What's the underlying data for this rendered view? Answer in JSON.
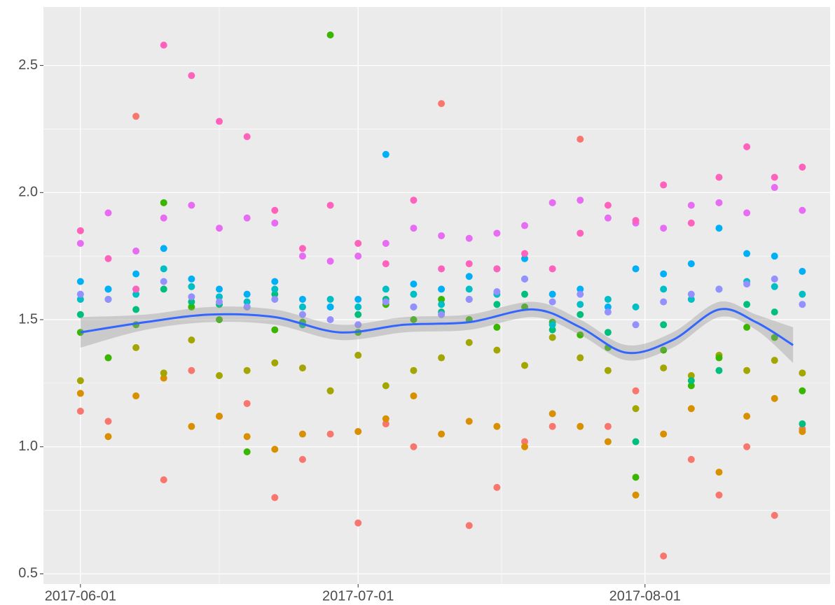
{
  "chart_data": {
    "type": "scatter",
    "x": [
      "2017-06-01",
      "2017-06-04",
      "2017-06-07",
      "2017-06-10",
      "2017-06-13",
      "2017-06-16",
      "2017-06-19",
      "2017-06-22",
      "2017-06-25",
      "2017-06-28",
      "2017-07-01",
      "2017-07-04",
      "2017-07-07",
      "2017-07-10",
      "2017-07-13",
      "2017-07-16",
      "2017-07-19",
      "2017-07-22",
      "2017-07-25",
      "2017-07-28",
      "2017-07-31",
      "2017-08-03",
      "2017-08-06",
      "2017-08-09",
      "2017-08-12",
      "2017-08-15",
      "2017-08-18"
    ],
    "series": [
      {
        "color": "#F8766D",
        "values": [
          1.14,
          1.1,
          2.3,
          0.87,
          1.3,
          1.12,
          1.17,
          0.8,
          0.95,
          1.05,
          0.7,
          1.09,
          1.0,
          2.35,
          0.69,
          0.84,
          1.02,
          1.08,
          2.21,
          1.08,
          1.22,
          0.57,
          0.95,
          0.81,
          1.0,
          0.73,
          1.07
        ]
      },
      {
        "color": "#D89000",
        "values": [
          1.21,
          1.04,
          1.2,
          1.27,
          1.08,
          1.12,
          1.04,
          0.99,
          1.05,
          1.22,
          1.06,
          1.11,
          1.2,
          1.05,
          1.1,
          1.08,
          1.0,
          1.13,
          1.08,
          1.02,
          0.81,
          1.05,
          1.15,
          0.9,
          1.12,
          1.19,
          1.06
        ]
      },
      {
        "color": "#A3A500",
        "values": [
          1.26,
          1.35,
          1.39,
          1.29,
          1.42,
          1.28,
          1.3,
          1.33,
          1.31,
          1.22,
          1.36,
          1.24,
          1.3,
          1.35,
          1.41,
          1.38,
          1.32,
          1.43,
          1.35,
          1.3,
          1.15,
          1.31,
          1.28,
          1.36,
          1.3,
          1.34,
          1.29
        ]
      },
      {
        "color": "#39B600",
        "values": [
          1.45,
          1.35,
          1.48,
          1.96,
          1.55,
          1.5,
          0.98,
          1.46,
          1.49,
          2.62,
          1.45,
          1.56,
          1.5,
          1.58,
          1.5,
          1.47,
          1.55,
          1.49,
          1.44,
          1.39,
          0.88,
          1.38,
          1.24,
          1.35,
          1.47,
          1.43,
          1.22
        ]
      },
      {
        "color": "#00BF7D",
        "values": [
          1.52,
          1.58,
          1.54,
          1.62,
          1.57,
          1.56,
          1.55,
          1.6,
          1.48,
          1.55,
          1.52,
          1.58,
          1.55,
          1.53,
          1.58,
          1.56,
          1.6,
          1.46,
          1.52,
          1.45,
          1.02,
          1.48,
          1.26,
          1.3,
          1.56,
          1.53,
          1.09
        ]
      },
      {
        "color": "#00BFC4",
        "values": [
          1.58,
          1.62,
          1.6,
          1.7,
          1.63,
          1.59,
          1.57,
          1.62,
          1.55,
          1.58,
          1.55,
          1.62,
          1.6,
          1.56,
          1.62,
          1.6,
          1.66,
          1.48,
          1.56,
          1.58,
          1.55,
          1.62,
          1.58,
          1.62,
          1.65,
          1.63,
          1.6
        ]
      },
      {
        "color": "#00B0F6",
        "values": [
          1.65,
          1.62,
          1.68,
          1.78,
          1.66,
          1.62,
          1.6,
          1.65,
          1.58,
          1.55,
          1.58,
          2.15,
          1.64,
          1.62,
          1.67,
          1.7,
          1.74,
          1.6,
          1.62,
          1.55,
          1.7,
          1.68,
          1.72,
          1.86,
          1.76,
          1.75,
          1.69
        ]
      },
      {
        "color": "#9590FF",
        "values": [
          1.6,
          1.58,
          1.62,
          1.65,
          1.59,
          1.57,
          1.55,
          1.58,
          1.52,
          1.5,
          1.48,
          1.57,
          1.55,
          1.52,
          1.58,
          1.61,
          1.66,
          1.57,
          1.6,
          1.53,
          1.48,
          1.57,
          1.6,
          1.62,
          1.64,
          1.66,
          1.56
        ]
      },
      {
        "color": "#E76BF3",
        "values": [
          1.8,
          1.92,
          1.77,
          1.9,
          1.95,
          1.86,
          1.9,
          1.88,
          1.75,
          1.73,
          1.75,
          1.8,
          1.86,
          1.83,
          1.82,
          1.84,
          1.87,
          1.96,
          1.97,
          1.9,
          1.88,
          1.86,
          1.95,
          1.96,
          1.92,
          2.02,
          1.93
        ]
      },
      {
        "color": "#FF62BC",
        "values": [
          1.85,
          1.74,
          1.62,
          2.58,
          2.46,
          2.28,
          2.22,
          1.93,
          1.78,
          1.95,
          1.8,
          1.72,
          1.97,
          1.7,
          1.72,
          1.7,
          1.76,
          1.7,
          1.84,
          1.95,
          1.89,
          2.03,
          1.88,
          2.06,
          2.18,
          2.06,
          2.1
        ]
      }
    ],
    "smooth": {
      "color": "#3366FF",
      "band_color": "#999999",
      "x": [
        "2017-06-01",
        "2017-06-08",
        "2017-06-15",
        "2017-06-22",
        "2017-06-29",
        "2017-07-06",
        "2017-07-13",
        "2017-07-20",
        "2017-07-25",
        "2017-07-30",
        "2017-08-04",
        "2017-08-09",
        "2017-08-13",
        "2017-08-17"
      ],
      "y": [
        1.45,
        1.49,
        1.52,
        1.51,
        1.45,
        1.48,
        1.49,
        1.54,
        1.47,
        1.37,
        1.42,
        1.54,
        1.49,
        1.4
      ],
      "lower": [
        1.39,
        1.46,
        1.49,
        1.48,
        1.42,
        1.45,
        1.46,
        1.51,
        1.44,
        1.34,
        1.39,
        1.51,
        1.46,
        1.33
      ],
      "upper": [
        1.51,
        1.52,
        1.55,
        1.54,
        1.48,
        1.51,
        1.52,
        1.57,
        1.5,
        1.4,
        1.45,
        1.57,
        1.52,
        1.47
      ]
    },
    "xlim": [
      "2017-05-28",
      "2017-08-21"
    ],
    "xticks": [
      "2017-06-01",
      "2017-07-01",
      "2017-08-01"
    ],
    "ylim": [
      0.46,
      2.73
    ],
    "yticks": [
      {
        "value": 0.5,
        "label": "0.5"
      },
      {
        "value": 1.0,
        "label": "1.0"
      },
      {
        "value": 1.5,
        "label": "1.5"
      },
      {
        "value": 2.0,
        "label": "2.0"
      },
      {
        "value": 2.5,
        "label": "2.5"
      }
    ],
    "grid": true
  }
}
